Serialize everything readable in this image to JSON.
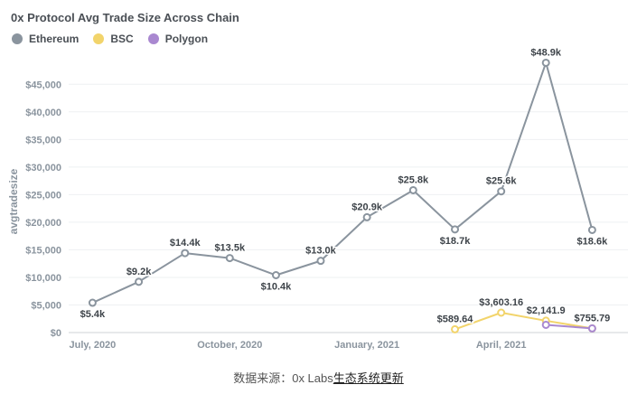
{
  "chart_data": {
    "type": "line",
    "title": "0x Protocol Avg Trade Size Across Chain",
    "ylabel": "avgtradesize",
    "xlabel": "",
    "ylim": [
      0,
      47500
    ],
    "xlim": [
      "2020-06-15",
      "2021-06-25"
    ],
    "grid": "horizontal",
    "legend_position": "top-left",
    "y_ticks": [
      0,
      5000,
      10000,
      15000,
      20000,
      25000,
      30000,
      35000,
      40000,
      45000
    ],
    "y_tick_labels": [
      "$0",
      "$5,000",
      "$10,000",
      "$15,000",
      "$20,000",
      "$25,000",
      "$30,000",
      "$35,000",
      "$40,000",
      "$45,000"
    ],
    "x_ticks": [
      "2020-07-01",
      "2020-10-01",
      "2021-01-01",
      "2021-04-01"
    ],
    "x_tick_labels": [
      "July, 2020",
      "October, 2020",
      "January, 2021",
      "April, 2021"
    ],
    "series": [
      {
        "name": "Ethereum",
        "color": "#8a949e",
        "marker_fill": "#ffffff",
        "points": [
          {
            "x": "2020-07-01",
            "y": 5400,
            "label": "$5.4k",
            "label_pos": "below"
          },
          {
            "x": "2020-08-01",
            "y": 9200,
            "label": "$9.2k",
            "label_pos": "above"
          },
          {
            "x": "2020-09-01",
            "y": 14400,
            "label": "$14.4k",
            "label_pos": "above"
          },
          {
            "x": "2020-10-01",
            "y": 13500,
            "label": "$13.5k",
            "label_pos": "above"
          },
          {
            "x": "2020-11-01",
            "y": 10400,
            "label": "$10.4k",
            "label_pos": "below"
          },
          {
            "x": "2020-12-01",
            "y": 13000,
            "label": "$13.0k",
            "label_pos": "above"
          },
          {
            "x": "2021-01-01",
            "y": 20900,
            "label": "$20.9k",
            "label_pos": "above"
          },
          {
            "x": "2021-02-01",
            "y": 25800,
            "label": "$25.8k",
            "label_pos": "above"
          },
          {
            "x": "2021-03-01",
            "y": 18700,
            "label": "$18.7k",
            "label_pos": "below"
          },
          {
            "x": "2021-04-01",
            "y": 25600,
            "label": "$25.6k",
            "label_pos": "above"
          },
          {
            "x": "2021-05-01",
            "y": 48900,
            "label": "$48.9k",
            "label_pos": "above"
          },
          {
            "x": "2021-06-01",
            "y": 18600,
            "label": "$18.6k",
            "label_pos": "below"
          }
        ]
      },
      {
        "name": "BSC",
        "color": "#f2d46b",
        "marker_fill": "#ffffff",
        "points": [
          {
            "x": "2021-03-01",
            "y": 589.64,
            "label": "$589.64",
            "label_pos": "above"
          },
          {
            "x": "2021-04-01",
            "y": 3603.16,
            "label": "$3,603.16",
            "label_pos": "above"
          },
          {
            "x": "2021-05-01",
            "y": 2141.9,
            "label": "$2,141.9",
            "label_pos": "above"
          },
          {
            "x": "2021-06-01",
            "y": 755.79,
            "label": "$755.79",
            "label_pos": "above"
          }
        ]
      },
      {
        "name": "Polygon",
        "color": "#a988d0",
        "marker_fill": "#ffffff",
        "points": [
          {
            "x": "2021-05-01",
            "y": 1400,
            "label": "",
            "label_pos": "none"
          },
          {
            "x": "2021-06-01",
            "y": 755.79,
            "label": "",
            "label_pos": "none"
          }
        ]
      }
    ]
  },
  "caption": {
    "prefix": "数据来源：0x Labs",
    "link_text": "生态系统更新"
  }
}
